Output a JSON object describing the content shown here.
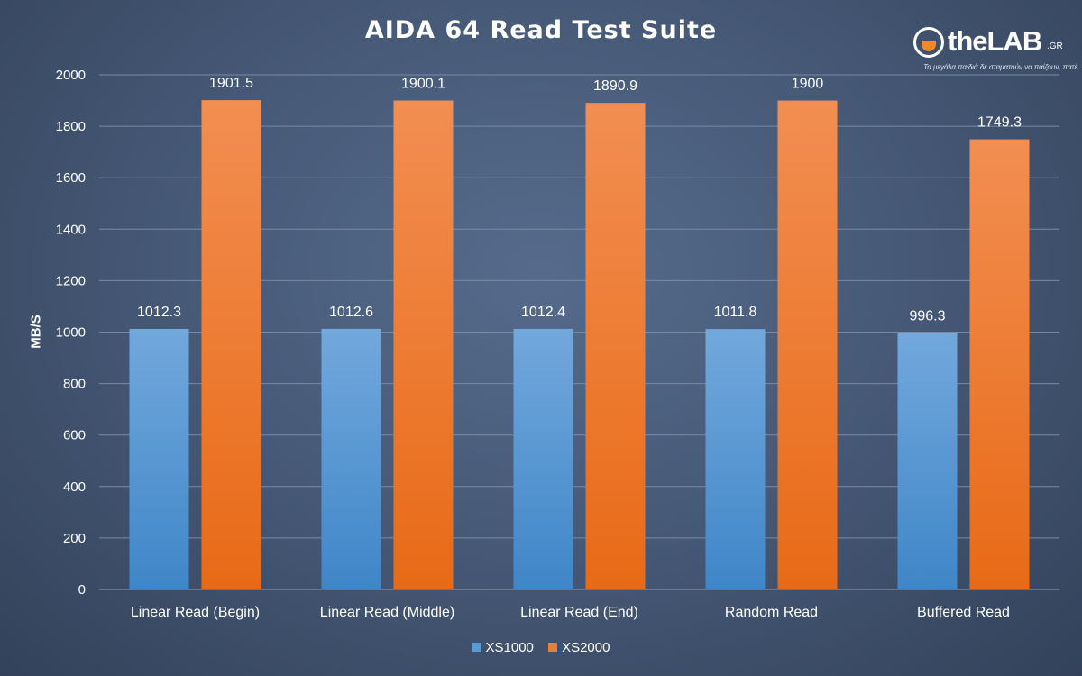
{
  "logo": {
    "name": "theLAB",
    "suffix": ".GR",
    "tagline": "Τα μεγάλα παιδιά δε σταματούν να παίζουν, πατέ"
  },
  "chart_data": {
    "type": "bar",
    "title": "AIDA 64 Read Test Suite",
    "ylabel": "MB/S",
    "xlabel": "",
    "ylim": [
      0,
      2000
    ],
    "yticks": [
      0,
      200,
      400,
      600,
      800,
      1000,
      1200,
      1400,
      1600,
      1800,
      2000
    ],
    "grid": true,
    "legend_position": "bottom",
    "categories": [
      "Linear Read (Begin)",
      "Linear Read (Middle)",
      "Linear Read (End)",
      "Random Read",
      "Buffered Read"
    ],
    "series": [
      {
        "name": "XS1000",
        "color": "#5b9bd5",
        "values": [
          1012.3,
          1012.6,
          1012.4,
          1011.8,
          996.3
        ],
        "labels": [
          "1012.3",
          "1012.6",
          "1012.4",
          "1011.8",
          "996.3"
        ]
      },
      {
        "name": "XS2000",
        "color": "#ed7d31",
        "values": [
          1901.5,
          1900.1,
          1890.9,
          1900,
          1749.3
        ],
        "labels": [
          "1901.5",
          "1900.1",
          "1890.9",
          "1900",
          "1749.3"
        ]
      }
    ]
  }
}
